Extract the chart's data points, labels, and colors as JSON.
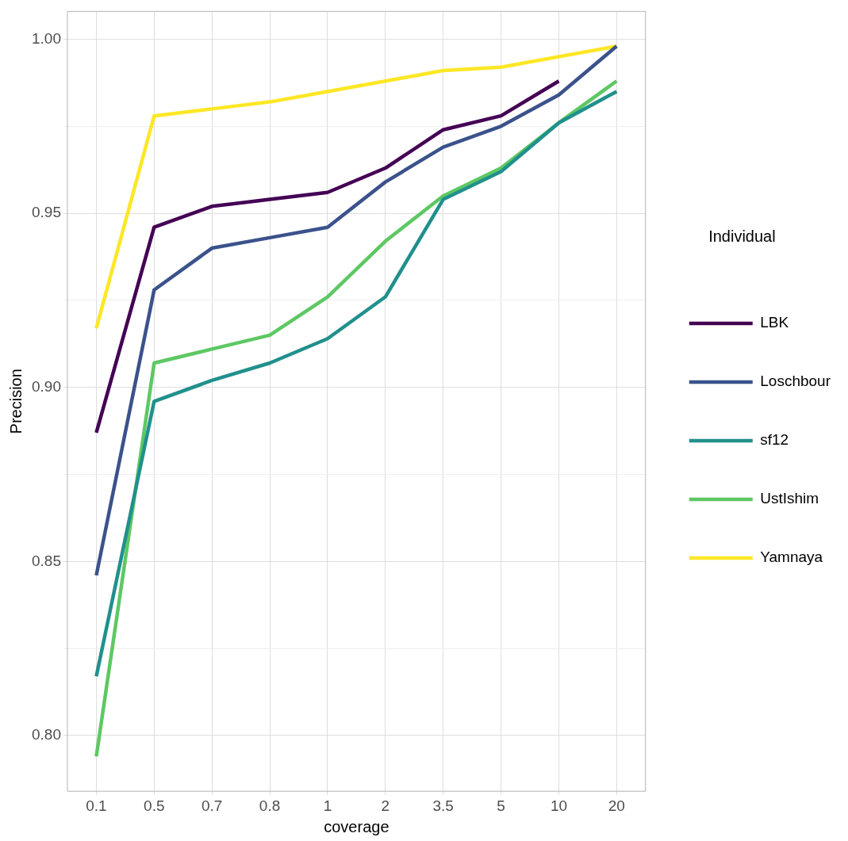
{
  "chart_data": {
    "type": "line",
    "xlabel": "coverage",
    "ylabel": "Precision",
    "legend_title": "Individual",
    "legend": "right",
    "grid": true,
    "marker": "none",
    "line_style": "solid",
    "categories": [
      "0.1",
      "0.5",
      "0.7",
      "0.8",
      "1",
      "2",
      "3.5",
      "5",
      "10",
      "20"
    ],
    "ylim": [
      0.784,
      1.008
    ],
    "yticks": [
      {
        "value": 0.8,
        "label": "0.80"
      },
      {
        "value": 0.825,
        "label": null
      },
      {
        "value": 0.85,
        "label": "0.85"
      },
      {
        "value": 0.875,
        "label": null
      },
      {
        "value": 0.9,
        "label": "0.90"
      },
      {
        "value": 0.925,
        "label": null
      },
      {
        "value": 0.95,
        "label": "0.95"
      },
      {
        "value": 0.975,
        "label": null
      },
      {
        "value": 1.0,
        "label": "1.00"
      }
    ],
    "series": [
      {
        "name": "LBK",
        "color": "#440154",
        "values": [
          0.887,
          0.946,
          0.952,
          0.954,
          0.956,
          0.963,
          0.974,
          0.978,
          0.988,
          null
        ]
      },
      {
        "name": "Loschbour",
        "color": "#3b528b",
        "values": [
          0.846,
          0.928,
          0.94,
          0.943,
          0.946,
          0.959,
          0.969,
          0.975,
          0.984,
          0.998
        ]
      },
      {
        "name": "sf12",
        "color": "#21908c",
        "values": [
          0.817,
          0.896,
          0.902,
          0.907,
          0.914,
          0.926,
          0.954,
          0.962,
          0.976,
          0.985
        ]
      },
      {
        "name": "UstIshim",
        "color": "#5dc863",
        "values": [
          0.794,
          0.907,
          0.911,
          0.915,
          0.926,
          0.942,
          0.955,
          0.963,
          0.976,
          0.988
        ]
      },
      {
        "name": "Yamnaya",
        "color": "#fde725",
        "values": [
          0.917,
          0.978,
          0.98,
          0.982,
          0.985,
          0.988,
          0.991,
          0.992,
          0.995,
          0.998
        ]
      }
    ]
  }
}
